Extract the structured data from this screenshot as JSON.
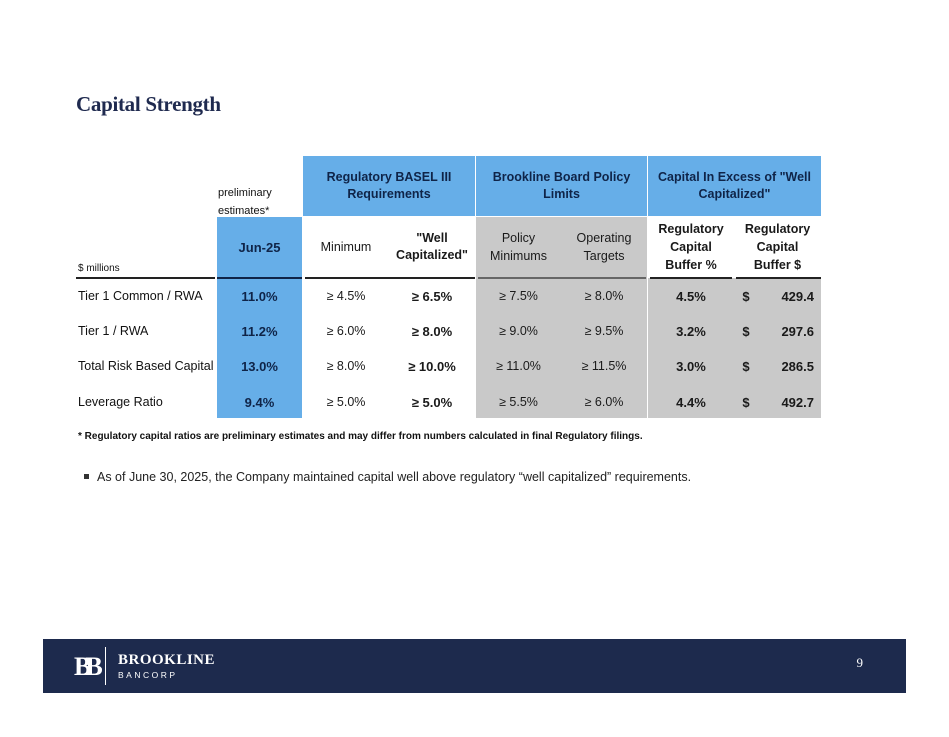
{
  "title": "Capital Strength",
  "header_groups": {
    "regulatory": "Regulatory BASEL III Requirements",
    "board": "Brookline Board Policy Limits",
    "excess": "Capital In Excess of \"Well Capitalized\""
  },
  "preliminary_note": "preliminary estimates*",
  "units_label": "$ millions",
  "columns": {
    "period": "Jun-25",
    "minimum": "Minimum",
    "well_cap": "\"Well Capitalized\"",
    "policy_min": "Policy Minimums",
    "operating": "Operating Targets",
    "buffer_pct": "Regulatory Capital Buffer %",
    "buffer_usd": "Regulatory Capital Buffer $"
  },
  "rows": [
    {
      "label": "Tier 1 Common / RWA",
      "period": "11.0%",
      "minimum": "≥ 4.5%",
      "well_cap": "≥ 6.5%",
      "policy_min": "≥ 7.5%",
      "operating": "≥ 8.0%",
      "buffer_pct": "4.5%",
      "currency": "$",
      "buffer_usd": "429.4"
    },
    {
      "label": "Tier 1 / RWA",
      "period": "11.2%",
      "minimum": "≥ 6.0%",
      "well_cap": "≥ 8.0%",
      "policy_min": "≥ 9.0%",
      "operating": "≥ 9.5%",
      "buffer_pct": "3.2%",
      "currency": "$",
      "buffer_usd": "297.6"
    },
    {
      "label": "Total Risk Based Capital",
      "period": "13.0%",
      "minimum": "≥ 8.0%",
      "well_cap": "≥ 10.0%",
      "policy_min": "≥ 11.0%",
      "operating": "≥ 11.5%",
      "buffer_pct": "3.0%",
      "currency": "$",
      "buffer_usd": "286.5"
    },
    {
      "label": "Leverage Ratio",
      "period": "9.4%",
      "minimum": "≥ 5.0%",
      "well_cap": "≥ 5.0%",
      "policy_min": "≥ 5.5%",
      "operating": "≥ 6.0%",
      "buffer_pct": "4.4%",
      "currency": "$",
      "buffer_usd": "492.7"
    }
  ],
  "footnote": "* Regulatory capital ratios are preliminary estimates and may differ from numbers calculated in final Regulatory filings.",
  "bullet": "As of June 30, 2025, the Company maintained capital well above regulatory “well capitalized” requirements.",
  "footer": {
    "logo_mark": "BB",
    "brand_name": "BROOKLINE",
    "brand_sub": "BANCORP",
    "page_number": "9"
  }
}
